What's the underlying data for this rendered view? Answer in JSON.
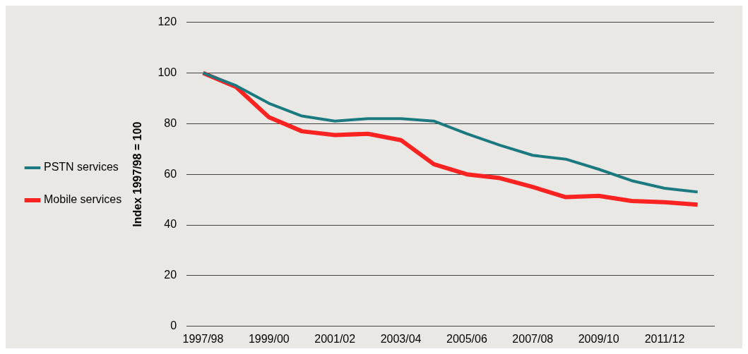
{
  "chart_data": {
    "type": "line",
    "ylabel": "Index 1997/98 = 100",
    "categories": [
      "1997/98",
      null,
      "1999/00",
      null,
      "2001/02",
      null,
      "2003/04",
      null,
      "2005/06",
      null,
      "2007/08",
      null,
      "2009/10",
      null,
      "2011/12",
      null
    ],
    "series": [
      {
        "name": "PSTN services",
        "color": "#1a7a80",
        "values": [
          100,
          95,
          88,
          83,
          81,
          82,
          82,
          81,
          76,
          71.5,
          67.5,
          66,
          62,
          57.5,
          54.5,
          53
        ]
      },
      {
        "name": "Mobile services",
        "color": "#fb2222",
        "values": [
          100,
          94.5,
          82.5,
          77,
          75.5,
          76,
          73.5,
          64,
          60,
          58.5,
          55,
          51,
          51.5,
          49.5,
          49,
          48
        ]
      }
    ],
    "ylim": [
      0,
      120
    ],
    "yticks": [
      0,
      20,
      40,
      60,
      80,
      100,
      120
    ],
    "grid": "y",
    "legend": "left",
    "marker": "none",
    "line_style": "solid"
  }
}
